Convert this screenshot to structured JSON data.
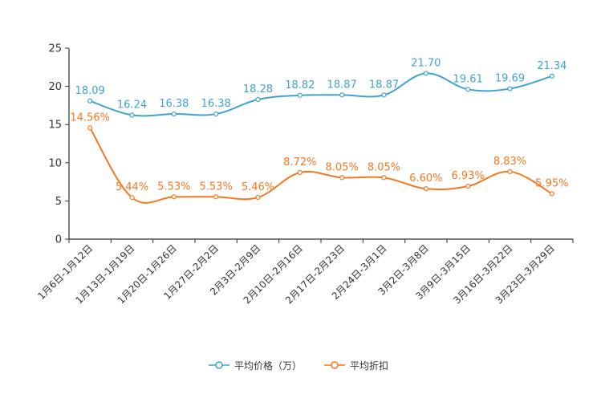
{
  "chart_data": {
    "type": "line",
    "categories": [
      "1月6日-1月12日",
      "1月13日-1月19日",
      "1月20日-1月26日",
      "1月27日-2月2日",
      "2月3日-2月9日",
      "2月10日-2月16日",
      "2月17日-2月23日",
      "2月24日-3月1日",
      "3月2日-3月8日",
      "3月9日-3月15日",
      "3月16日-3月22日",
      "3月23日-3月29日"
    ],
    "series": [
      {
        "name": "平均价格（万）",
        "color": "#3fa2d3",
        "values": [
          18.09,
          16.24,
          16.38,
          16.38,
          18.28,
          18.82,
          18.87,
          18.87,
          21.7,
          19.61,
          19.69,
          21.34
        ],
        "labels": [
          "18.09",
          "16.24",
          "16.38",
          "16.38",
          "18.28",
          "18.82",
          "18.87",
          "18.87",
          "21.70",
          "19.61",
          "19.69",
          "21.34"
        ]
      },
      {
        "name": "平均折扣",
        "color": "#f5781f",
        "values": [
          14.56,
          5.44,
          5.53,
          5.53,
          5.46,
          8.72,
          8.05,
          8.05,
          6.6,
          6.93,
          8.83,
          5.95
        ],
        "labels": [
          "14.56%",
          "5.44%",
          "5.53%",
          "5.53%",
          "5.46%",
          "8.72%",
          "8.05%",
          "8.05%",
          "6.60%",
          "6.93%",
          "8.83%",
          "5.95%"
        ]
      }
    ],
    "ylim": [
      0,
      25
    ],
    "yticks": [
      0,
      5,
      10,
      15,
      20,
      25
    ],
    "ytick_labels": [
      "0",
      "5",
      "10",
      "15",
      "20",
      "25"
    ],
    "legend_position": "bottom-center",
    "grid": false
  }
}
